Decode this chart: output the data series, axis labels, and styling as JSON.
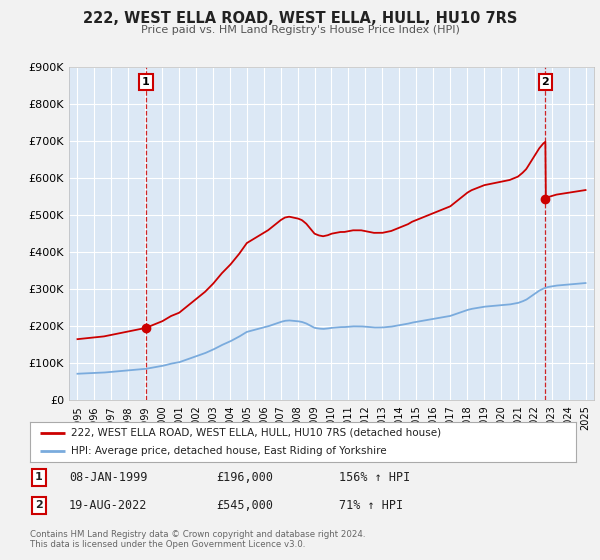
{
  "title": "222, WEST ELLA ROAD, WEST ELLA, HULL, HU10 7RS",
  "subtitle": "Price paid vs. HM Land Registry's House Price Index (HPI)",
  "bg_color": "#f2f2f2",
  "plot_bg_color": "#dce8f5",
  "grid_color": "#ffffff",
  "red_line_color": "#cc0000",
  "blue_line_color": "#7aabdd",
  "legend_label_red": "222, WEST ELLA ROAD, WEST ELLA, HULL, HU10 7RS (detached house)",
  "legend_label_blue": "HPI: Average price, detached house, East Riding of Yorkshire",
  "transaction1_date": "08-JAN-1999",
  "transaction1_price": "£196,000",
  "transaction1_hpi": "156% ↑ HPI",
  "transaction2_date": "19-AUG-2022",
  "transaction2_price": "£545,000",
  "transaction2_hpi": "71% ↑ HPI",
  "footer_text1": "Contains HM Land Registry data © Crown copyright and database right 2024.",
  "footer_text2": "This data is licensed under the Open Government Licence v3.0.",
  "ylim_max": 900000,
  "yticks": [
    0,
    100000,
    200000,
    300000,
    400000,
    500000,
    600000,
    700000,
    800000,
    900000
  ],
  "t1_year": 1999.04,
  "t1_price": 196000,
  "t2_year": 2022.63,
  "t2_price": 545000,
  "hpi_x": [
    1995.0,
    1995.25,
    1995.5,
    1995.75,
    1996.0,
    1996.25,
    1996.5,
    1996.75,
    1997.0,
    1997.25,
    1997.5,
    1997.75,
    1998.0,
    1998.25,
    1998.5,
    1998.75,
    1999.0,
    1999.25,
    1999.5,
    1999.75,
    2000.0,
    2000.25,
    2000.5,
    2000.75,
    2001.0,
    2001.25,
    2001.5,
    2001.75,
    2002.0,
    2002.25,
    2002.5,
    2002.75,
    2003.0,
    2003.25,
    2003.5,
    2003.75,
    2004.0,
    2004.25,
    2004.5,
    2004.75,
    2005.0,
    2005.25,
    2005.5,
    2005.75,
    2006.0,
    2006.25,
    2006.5,
    2006.75,
    2007.0,
    2007.25,
    2007.5,
    2007.75,
    2008.0,
    2008.25,
    2008.5,
    2008.75,
    2009.0,
    2009.25,
    2009.5,
    2009.75,
    2010.0,
    2010.25,
    2010.5,
    2010.75,
    2011.0,
    2011.25,
    2011.5,
    2011.75,
    2012.0,
    2012.25,
    2012.5,
    2012.75,
    2013.0,
    2013.25,
    2013.5,
    2013.75,
    2014.0,
    2014.25,
    2014.5,
    2014.75,
    2015.0,
    2015.25,
    2015.5,
    2015.75,
    2016.0,
    2016.25,
    2016.5,
    2016.75,
    2017.0,
    2017.25,
    2017.5,
    2017.75,
    2018.0,
    2018.25,
    2018.5,
    2018.75,
    2019.0,
    2019.25,
    2019.5,
    2019.75,
    2020.0,
    2020.25,
    2020.5,
    2020.75,
    2021.0,
    2021.25,
    2021.5,
    2021.75,
    2022.0,
    2022.25,
    2022.5,
    2022.75,
    2023.0,
    2023.25,
    2023.5,
    2023.75,
    2024.0,
    2024.25,
    2024.5,
    2024.75,
    2025.0
  ],
  "hpi_y": [
    72000,
    72500,
    73000,
    73500,
    74000,
    74500,
    75000,
    76000,
    77000,
    78000,
    79000,
    80000,
    81000,
    82000,
    83000,
    84000,
    85000,
    87000,
    89000,
    91000,
    93000,
    96000,
    99000,
    101000,
    103000,
    107000,
    111000,
    115000,
    119000,
    123000,
    127000,
    132000,
    137000,
    143000,
    149000,
    154000,
    159000,
    165000,
    171000,
    178000,
    185000,
    188000,
    191000,
    194000,
    197000,
    200000,
    204000,
    208000,
    212000,
    215000,
    216000,
    215000,
    214000,
    212000,
    208000,
    202000,
    196000,
    194000,
    193000,
    194000,
    196000,
    197000,
    198000,
    198000,
    199000,
    200000,
    200000,
    200000,
    199000,
    198000,
    197000,
    197000,
    197000,
    198000,
    199000,
    201000,
    203000,
    205000,
    207000,
    210000,
    212000,
    214000,
    216000,
    218000,
    220000,
    222000,
    224000,
    226000,
    228000,
    232000,
    236000,
    240000,
    244000,
    247000,
    249000,
    251000,
    253000,
    254000,
    255000,
    256000,
    257000,
    258000,
    259000,
    261000,
    263000,
    267000,
    272000,
    280000,
    288000,
    296000,
    302000,
    306000,
    308000,
    310000,
    311000,
    312000,
    313000,
    314000,
    315000,
    316000,
    317000
  ]
}
